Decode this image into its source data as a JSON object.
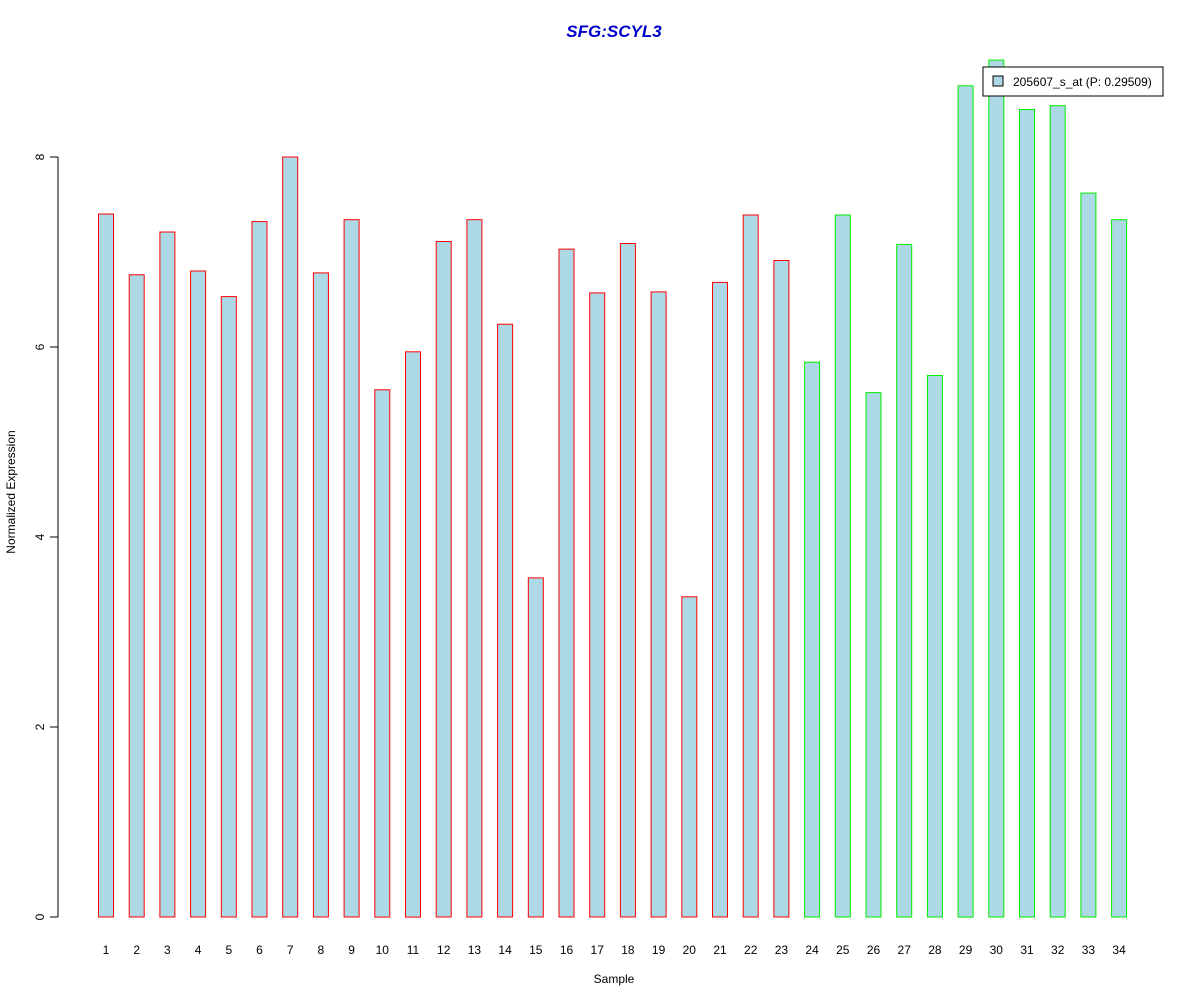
{
  "chart_data": {
    "type": "bar",
    "title": "SFG:SCYL3",
    "xlabel": "Sample",
    "ylabel": "Normalized Expression",
    "ylim": [
      0,
      9.1
    ],
    "yticks": [
      0,
      2,
      4,
      6,
      8
    ],
    "categories": [
      "1",
      "2",
      "3",
      "4",
      "5",
      "6",
      "7",
      "8",
      "9",
      "10",
      "11",
      "12",
      "13",
      "14",
      "15",
      "16",
      "17",
      "18",
      "19",
      "20",
      "21",
      "22",
      "23",
      "24",
      "25",
      "26",
      "27",
      "28",
      "29",
      "30",
      "31",
      "32",
      "33",
      "34"
    ],
    "series": [
      {
        "name": "205607_s_at (P: 0.29509)",
        "fill": "#add8e6",
        "values": [
          7.4,
          6.76,
          7.21,
          6.8,
          6.53,
          7.32,
          8.0,
          6.78,
          7.34,
          5.55,
          5.95,
          7.11,
          7.34,
          6.24,
          3.57,
          7.03,
          6.57,
          7.09,
          6.58,
          3.37,
          6.68,
          7.39,
          6.91,
          5.84,
          7.39,
          5.52,
          7.08,
          5.7,
          8.75,
          9.02,
          8.5,
          8.54,
          7.62,
          7.34
        ]
      }
    ],
    "group_border_colors": [
      "#ff0000",
      "#ff0000",
      "#ff0000",
      "#ff0000",
      "#ff0000",
      "#ff0000",
      "#ff0000",
      "#ff0000",
      "#ff0000",
      "#ff0000",
      "#ff0000",
      "#ff0000",
      "#ff0000",
      "#ff0000",
      "#ff0000",
      "#ff0000",
      "#ff0000",
      "#ff0000",
      "#ff0000",
      "#ff0000",
      "#ff0000",
      "#ff0000",
      "#ff0000",
      "#00ee00",
      "#00ee00",
      "#00ee00",
      "#00ee00",
      "#00ee00",
      "#00ee00",
      "#00ee00",
      "#00ee00",
      "#00ee00",
      "#00ee00",
      "#00ee00"
    ],
    "title_color": "#0000cc",
    "legend_placement": "top-right",
    "grid": false
  }
}
